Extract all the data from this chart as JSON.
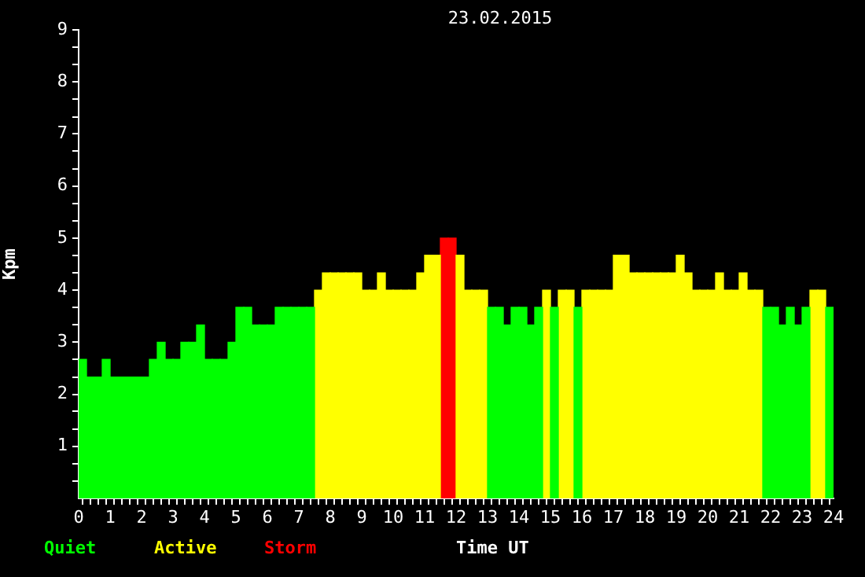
{
  "chart_data": {
    "type": "bar",
    "title": "23.02.2015",
    "xlabel": "Time UT",
    "ylabel": "Kpm",
    "legend": "bottom left",
    "x": [
      0.125,
      0.375,
      0.625,
      0.875,
      1.125,
      1.375,
      1.625,
      1.875,
      2.125,
      2.375,
      2.625,
      2.875,
      3.125,
      3.375,
      3.625,
      3.875,
      4.125,
      4.375,
      4.625,
      4.875,
      5.125,
      5.375,
      5.625,
      5.875,
      6.125,
      6.375,
      6.625,
      6.875,
      7.125,
      7.375,
      7.625,
      7.875,
      8.125,
      8.375,
      8.625,
      8.875,
      9.125,
      9.375,
      9.625,
      9.875,
      10.125,
      10.375,
      10.625,
      10.875,
      11.125,
      11.375,
      11.625,
      11.875,
      12.125,
      12.375,
      12.625,
      12.875,
      13.125,
      13.375,
      13.625,
      13.875,
      14.125,
      14.375,
      14.625,
      14.875,
      15.125,
      15.375,
      15.625,
      15.875,
      16.125,
      16.375,
      16.625,
      16.875,
      17.125,
      17.375,
      17.625,
      17.875,
      18.125,
      18.375,
      18.625,
      18.875,
      19.125,
      19.375,
      19.625,
      19.875,
      20.125,
      20.375,
      20.625,
      20.875,
      21.125,
      21.375,
      21.625,
      21.875,
      22.125,
      22.375,
      22.625,
      22.875,
      23.125,
      23.375,
      23.625,
      23.875
    ],
    "series": [
      {
        "name": "Quiet",
        "color": "#00ff00",
        "values": [
          2.67,
          2.33,
          2.33,
          2.67,
          2.33,
          2.33,
          2.33,
          2.33,
          2.33,
          2.67,
          3,
          2.67,
          2.67,
          3,
          3,
          3.33,
          2.67,
          2.67,
          2.67,
          3,
          3.67,
          3.67,
          3.33,
          3.33,
          3.33,
          3.67,
          3.67,
          3.67,
          3.67,
          3.67,
          null,
          null,
          null,
          null,
          null,
          null,
          null,
          null,
          null,
          null,
          null,
          null,
          null,
          null,
          null,
          null,
          null,
          null,
          null,
          null,
          null,
          null,
          3.67,
          3.67,
          3.33,
          3.67,
          3.67,
          3.33,
          3.67,
          null,
          3.67,
          null,
          null,
          3.67,
          null,
          null,
          null,
          null,
          null,
          null,
          null,
          null,
          null,
          null,
          null,
          null,
          null,
          null,
          null,
          null,
          null,
          null,
          null,
          null,
          null,
          null,
          null,
          3.67,
          3.67,
          3.33,
          3.67,
          3.33,
          3.67,
          null,
          null,
          3.67
        ]
      },
      {
        "name": "Active",
        "color": "#ffff00",
        "values": [
          null,
          null,
          null,
          null,
          null,
          null,
          null,
          null,
          null,
          null,
          null,
          null,
          null,
          null,
          null,
          null,
          null,
          null,
          null,
          null,
          null,
          null,
          null,
          null,
          null,
          null,
          null,
          null,
          null,
          null,
          4,
          4.33,
          4.33,
          4.33,
          4.33,
          4.33,
          4,
          4,
          4.33,
          4,
          4,
          4,
          4,
          4.33,
          4.67,
          4.67,
          null,
          null,
          4.67,
          4,
          4,
          4,
          null,
          null,
          null,
          null,
          null,
          null,
          null,
          4,
          null,
          4,
          4,
          null,
          4,
          4,
          4,
          4,
          4.67,
          4.67,
          4.33,
          4.33,
          4.33,
          4.33,
          4.33,
          4.33,
          4.67,
          4.33,
          4,
          4,
          4,
          4.33,
          4,
          4,
          4.33,
          4,
          4,
          null,
          null,
          null,
          null,
          null,
          null,
          4,
          4,
          null
        ]
      },
      {
        "name": "Storm",
        "color": "#ff0000",
        "values": [
          null,
          null,
          null,
          null,
          null,
          null,
          null,
          null,
          null,
          null,
          null,
          null,
          null,
          null,
          null,
          null,
          null,
          null,
          null,
          null,
          null,
          null,
          null,
          null,
          null,
          null,
          null,
          null,
          null,
          null,
          null,
          null,
          null,
          null,
          null,
          null,
          null,
          null,
          null,
          null,
          null,
          null,
          null,
          null,
          null,
          null,
          5,
          5,
          null,
          null,
          null,
          null,
          null,
          null,
          null,
          null,
          null,
          null,
          null,
          null,
          null,
          null,
          null,
          null,
          null,
          null,
          null,
          null,
          null,
          null,
          null,
          null,
          null,
          null,
          null,
          null,
          null,
          null,
          null,
          null,
          null,
          null,
          null,
          null,
          null,
          null,
          null,
          null,
          null,
          null,
          null,
          null,
          null,
          null,
          null,
          null
        ]
      }
    ],
    "xlim": [
      0,
      24
    ],
    "xticks": [
      0,
      {
        "value": 0.25,
        "label": null
      },
      {
        "value": 0.5,
        "label": null
      },
      {
        "value": 0.75,
        "label": null
      },
      1,
      {
        "value": 1.25,
        "label": null
      },
      {
        "value": 1.5,
        "label": null
      },
      {
        "value": 1.75,
        "label": null
      },
      2,
      {
        "value": 2.25,
        "label": null
      },
      {
        "value": 2.5,
        "label": null
      },
      {
        "value": 2.75,
        "label": null
      },
      3,
      {
        "value": 3.25,
        "label": null
      },
      {
        "value": 3.5,
        "label": null
      },
      {
        "value": 3.75,
        "label": null
      },
      4,
      {
        "value": 4.25,
        "label": null
      },
      {
        "value": 4.5,
        "label": null
      },
      {
        "value": 4.75,
        "label": null
      },
      5,
      {
        "value": 5.25,
        "label": null
      },
      {
        "value": 5.5,
        "label": null
      },
      {
        "value": 5.75,
        "label": null
      },
      6,
      {
        "value": 6.25,
        "label": null
      },
      {
        "value": 6.5,
        "label": null
      },
      {
        "value": 6.75,
        "label": null
      },
      7,
      {
        "value": 7.25,
        "label": null
      },
      {
        "value": 7.5,
        "label": null
      },
      {
        "value": 7.75,
        "label": null
      },
      8,
      {
        "value": 8.25,
        "label": null
      },
      {
        "value": 8.5,
        "label": null
      },
      {
        "value": 8.75,
        "label": null
      },
      9,
      {
        "value": 9.25,
        "label": null
      },
      {
        "value": 9.5,
        "label": null
      },
      {
        "value": 9.75,
        "label": null
      },
      10,
      {
        "value": 10.25,
        "label": null
      },
      {
        "value": 10.5,
        "label": null
      },
      {
        "value": 10.75,
        "label": null
      },
      11,
      {
        "value": 11.25,
        "label": null
      },
      {
        "value": 11.5,
        "label": null
      },
      {
        "value": 11.75,
        "label": null
      },
      12,
      {
        "value": 12.25,
        "label": null
      },
      {
        "value": 12.5,
        "label": null
      },
      {
        "value": 12.75,
        "label": null
      },
      13,
      {
        "value": 13.25,
        "label": null
      },
      {
        "value": 13.5,
        "label": null
      },
      {
        "value": 13.75,
        "label": null
      },
      14,
      {
        "value": 14.25,
        "label": null
      },
      {
        "value": 14.5,
        "label": null
      },
      {
        "value": 14.75,
        "label": null
      },
      15,
      {
        "value": 15.25,
        "label": null
      },
      {
        "value": 15.5,
        "label": null
      },
      {
        "value": 15.75,
        "label": null
      },
      16,
      {
        "value": 16.25,
        "label": null
      },
      {
        "value": 16.5,
        "label": null
      },
      {
        "value": 16.75,
        "label": null
      },
      17,
      {
        "value": 17.25,
        "label": null
      },
      {
        "value": 17.5,
        "label": null
      },
      {
        "value": 17.75,
        "label": null
      },
      18,
      {
        "value": 18.25,
        "label": null
      },
      {
        "value": 18.5,
        "label": null
      },
      {
        "value": 18.75,
        "label": null
      },
      19,
      {
        "value": 19.25,
        "label": null
      },
      {
        "value": 19.5,
        "label": null
      },
      {
        "value": 19.75,
        "label": null
      },
      20,
      {
        "value": 20.25,
        "label": null
      },
      {
        "value": 20.5,
        "label": null
      },
      {
        "value": 20.75,
        "label": null
      },
      21,
      {
        "value": 21.25,
        "label": null
      },
      {
        "value": 21.5,
        "label": null
      },
      {
        "value": 21.75,
        "label": null
      },
      22,
      {
        "value": 22.25,
        "label": null
      },
      {
        "value": 22.5,
        "label": null
      },
      {
        "value": 22.75,
        "label": null
      },
      23,
      {
        "value": 23.25,
        "label": null
      },
      {
        "value": 23.5,
        "label": null
      },
      {
        "value": 23.75,
        "label": null
      },
      24
    ],
    "ylim": [
      0,
      9
    ],
    "yticks": [
      {
        "value": 0.33,
        "label": null
      },
      {
        "value": 0.67,
        "label": null
      },
      1,
      {
        "value": 1.33,
        "label": null
      },
      {
        "value": 1.67,
        "label": null
      },
      2,
      {
        "value": 2.33,
        "label": null
      },
      {
        "value": 2.67,
        "label": null
      },
      3,
      {
        "value": 3.33,
        "label": null
      },
      {
        "value": 3.67,
        "label": null
      },
      4,
      {
        "value": 4.33,
        "label": null
      },
      {
        "value": 4.67,
        "label": null
      },
      5,
      {
        "value": 5.33,
        "label": null
      },
      {
        "value": 5.67,
        "label": null
      },
      6,
      {
        "value": 6.33,
        "label": null
      },
      {
        "value": 6.67,
        "label": null
      },
      7,
      {
        "value": 7.33,
        "label": null
      },
      {
        "value": 7.67,
        "label": null
      },
      8,
      {
        "value": 8.33,
        "label": null
      },
      {
        "value": 8.67,
        "label": null
      },
      9
    ]
  }
}
